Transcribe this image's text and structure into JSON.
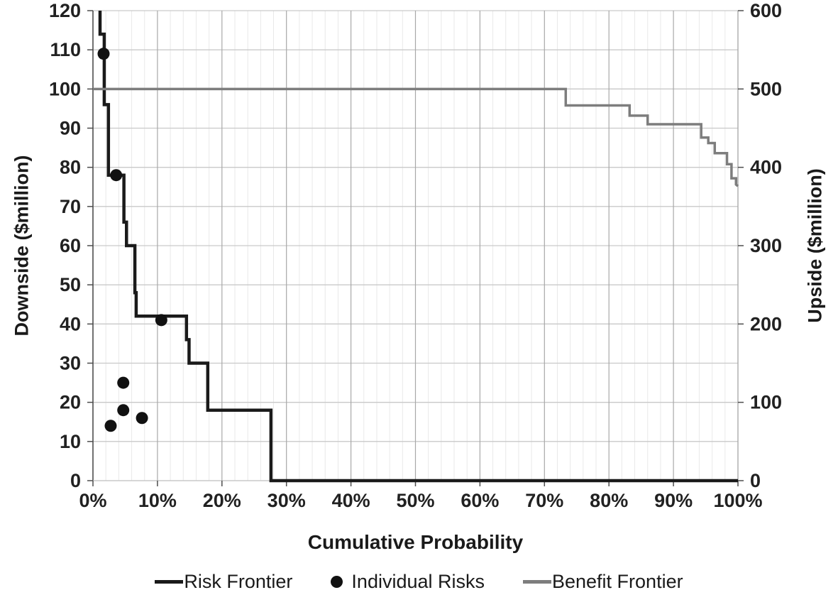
{
  "chart_data": {
    "type": "line",
    "title": "",
    "xlabel": "Cumulative Probability",
    "ylabel_left": "Downside ($million)",
    "ylabel_right": "Upside ($million)",
    "x_axis": {
      "min": 0,
      "max": 100,
      "major_step": 10,
      "minor_step": 2
    },
    "x_ticks": [
      "0%",
      "10%",
      "20%",
      "30%",
      "40%",
      "50%",
      "60%",
      "70%",
      "80%",
      "90%",
      "100%"
    ],
    "x_tick_values": [
      0,
      10,
      20,
      30,
      40,
      50,
      60,
      70,
      80,
      90,
      100
    ],
    "y_left": {
      "min": 0,
      "max": 120,
      "ticks": [
        0,
        10,
        20,
        30,
        40,
        50,
        60,
        70,
        80,
        90,
        100,
        110,
        120
      ]
    },
    "y_right": {
      "min": 0,
      "max": 600,
      "ticks": [
        0,
        100,
        200,
        300,
        400,
        500,
        600
      ]
    },
    "grid": {
      "horizontal": true,
      "vertical_major": true,
      "vertical_minor": true,
      "legend_position": "bottom"
    },
    "colors": {
      "risk": "#1a1a1a",
      "benefit": "#7d7d7d",
      "dots": "#111111",
      "grid_h": "#c9c9c9",
      "grid_major_v": "#a8a8a8",
      "grid_minor_v": "#e9e9e9",
      "axis_dark": "#4d4d4d",
      "axis_light": "#bfbfbf"
    },
    "series": [
      {
        "name": "Risk Frontier",
        "type": "step-line",
        "axis": "left",
        "color": "#1a1a1a",
        "width": 4.5,
        "points": [
          [
            1.1,
            120
          ],
          [
            1.1,
            114
          ],
          [
            1.75,
            114
          ],
          [
            1.75,
            96
          ],
          [
            2.4,
            96
          ],
          [
            2.4,
            78
          ],
          [
            4.8,
            78
          ],
          [
            4.8,
            66
          ],
          [
            5.2,
            66
          ],
          [
            5.2,
            60
          ],
          [
            6.5,
            60
          ],
          [
            6.5,
            48
          ],
          [
            6.7,
            48
          ],
          [
            6.7,
            42
          ],
          [
            14.5,
            42
          ],
          [
            14.5,
            36
          ],
          [
            14.9,
            36
          ],
          [
            14.9,
            30
          ],
          [
            17.8,
            30
          ],
          [
            17.8,
            18
          ],
          [
            27.6,
            18
          ],
          [
            27.6,
            0
          ],
          [
            100,
            0
          ]
        ]
      },
      {
        "name": "Individual Risks",
        "type": "scatter",
        "axis": "left",
        "color": "#111111",
        "radius": 8.5,
        "points": [
          [
            1.65,
            109
          ],
          [
            3.6,
            78
          ],
          [
            10.6,
            41
          ],
          [
            4.7,
            25
          ],
          [
            4.7,
            18
          ],
          [
            7.6,
            16
          ],
          [
            2.75,
            14
          ]
        ]
      },
      {
        "name": "Benefit Frontier",
        "type": "step-line",
        "axis": "right",
        "color": "#7d7d7d",
        "width": 3.5,
        "points": [
          [
            0,
            500
          ],
          [
            73.3,
            500
          ],
          [
            73.3,
            479
          ],
          [
            83.2,
            479
          ],
          [
            83.2,
            466
          ],
          [
            86,
            466
          ],
          [
            86,
            455
          ],
          [
            94.3,
            455
          ],
          [
            94.3,
            438
          ],
          [
            95.4,
            438
          ],
          [
            95.4,
            431
          ],
          [
            96.4,
            431
          ],
          [
            96.4,
            418
          ],
          [
            98.3,
            418
          ],
          [
            98.3,
            404
          ],
          [
            99,
            404
          ],
          [
            99,
            386
          ],
          [
            99.7,
            386
          ],
          [
            99.7,
            378
          ],
          [
            100,
            376
          ]
        ]
      }
    ],
    "legend": [
      {
        "label": "Risk Frontier",
        "swatch": "line",
        "color": "#1a1a1a"
      },
      {
        "label": "Individual Risks",
        "swatch": "dot",
        "color": "#111111"
      },
      {
        "label": "Benefit Frontier",
        "swatch": "line",
        "color": "#7d7d7d"
      }
    ]
  }
}
